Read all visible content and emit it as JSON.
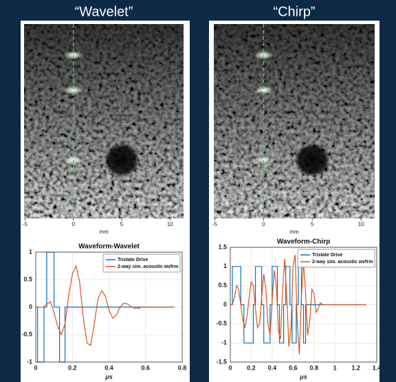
{
  "chart_data": [
    {
      "type": "image",
      "title": "“Wavelet”",
      "xlabel": "mm",
      "xlim": [
        -5.1,
        11.4
      ],
      "xticks": [
        -5,
        0,
        5,
        10
      ]
    },
    {
      "type": "image",
      "title": "“Chirp”",
      "xlabel": "mm",
      "xlim": [
        -5.1,
        11.4
      ],
      "xticks": [
        -5,
        0,
        5,
        10
      ]
    },
    {
      "type": "line",
      "title": "Waveform-Wavelet",
      "xlabel": "μs",
      "xlim": [
        0,
        0.8
      ],
      "ylim": [
        -1,
        1
      ],
      "xticks": [
        0,
        0.2,
        0.4,
        0.6,
        0.8
      ],
      "yticks": [
        -1,
        -0.5,
        0,
        0.5,
        1
      ],
      "grid": true,
      "legend": "top-right",
      "series": [
        {
          "name": "Tristate Drive",
          "color": "#0072bd",
          "x": [
            0,
            0.01,
            0.01,
            0.045,
            0.045,
            0.06,
            0.06,
            0.1,
            0.1,
            0.13,
            0.13,
            0.16,
            0.16,
            0.75
          ],
          "values": [
            0,
            0,
            -1,
            -1,
            0,
            0,
            1,
            1,
            0,
            0,
            -1,
            -1,
            0,
            0
          ]
        },
        {
          "name": "2-way sim. acoustic wvfrm",
          "color": "#d95319",
          "x": [
            0,
            0.02,
            0.04,
            0.06,
            0.08,
            0.1,
            0.12,
            0.14,
            0.16,
            0.18,
            0.2,
            0.22,
            0.24,
            0.26,
            0.28,
            0.3,
            0.32,
            0.34,
            0.36,
            0.38,
            0.4,
            0.42,
            0.44,
            0.46,
            0.48,
            0.5,
            0.52,
            0.54,
            0.56,
            0.58,
            0.6,
            0.62,
            0.64,
            0.66,
            0.68,
            0.7,
            0.72,
            0.74,
            0.76
          ],
          "values": [
            0,
            0,
            0,
            0.05,
            0.1,
            -0.1,
            -0.35,
            -0.5,
            -0.3,
            0.2,
            0.6,
            0.75,
            0.45,
            -0.2,
            -0.65,
            -0.7,
            -0.3,
            0.15,
            0.3,
            0.2,
            -0.05,
            -0.2,
            -0.15,
            0,
            0.07,
            0.06,
            0.01,
            -0.02,
            -0.02,
            0,
            0,
            0,
            0,
            0,
            0,
            0,
            0,
            0,
            0
          ]
        }
      ]
    },
    {
      "type": "line",
      "title": "Waveform-Chirp",
      "xlabel": "μs",
      "xlim": [
        0,
        1.4
      ],
      "ylim": [
        -1.5,
        1.5
      ],
      "xticks": [
        0,
        0.2,
        0.4,
        0.6,
        0.8,
        1,
        1.2,
        1.4
      ],
      "yticks": [
        -1.5,
        -1,
        -0.5,
        0,
        0.5,
        1,
        1.5
      ],
      "grid": true,
      "legend": "top-right",
      "series": [
        {
          "name": "Tristate Drive",
          "color": "#0072bd",
          "x": [
            0,
            0.02,
            0.02,
            0.1,
            0.1,
            0.13,
            0.13,
            0.22,
            0.22,
            0.24,
            0.24,
            0.3,
            0.3,
            0.32,
            0.32,
            0.38,
            0.38,
            0.4,
            0.4,
            0.45,
            0.45,
            0.47,
            0.47,
            0.51,
            0.51,
            0.53,
            0.53,
            0.57,
            0.57,
            0.59,
            0.59,
            0.63,
            0.63,
            0.65,
            0.65,
            0.68,
            0.68,
            0.7,
            0.7,
            0.72,
            0.72,
            1.3
          ],
          "values": [
            0,
            0,
            1,
            1,
            0,
            0,
            -1,
            -1,
            0,
            0,
            1,
            1,
            0,
            0,
            -1,
            -1,
            0,
            0,
            1,
            1,
            0,
            0,
            -1,
            -1,
            0,
            0,
            1,
            1,
            0,
            0,
            -1,
            -1,
            0,
            0,
            1,
            1,
            0,
            0,
            -1,
            -1,
            0,
            0
          ]
        },
        {
          "name": "2-way sim. acoustic wvfrm",
          "color": "#d95319",
          "x": [
            0,
            0.02,
            0.04,
            0.06,
            0.08,
            0.1,
            0.12,
            0.14,
            0.16,
            0.18,
            0.2,
            0.22,
            0.24,
            0.26,
            0.28,
            0.3,
            0.32,
            0.34,
            0.36,
            0.38,
            0.4,
            0.42,
            0.44,
            0.46,
            0.48,
            0.5,
            0.52,
            0.54,
            0.56,
            0.58,
            0.6,
            0.62,
            0.64,
            0.66,
            0.68,
            0.7,
            0.72,
            0.74,
            0.76,
            0.78,
            0.8,
            0.82,
            0.84,
            0.86,
            0.88,
            0.9,
            0.92,
            0.94,
            0.96,
            0.98,
            1,
            1.02,
            1.04,
            1.06,
            1.08,
            1.1,
            1.12,
            1.14,
            1.16,
            1.18,
            1.2,
            1.22,
            1.24,
            1.26,
            1.28,
            1.3
          ],
          "values": [
            0,
            0,
            0.2,
            0.5,
            0.4,
            0,
            -0.4,
            -0.6,
            -0.3,
            0.2,
            0.6,
            0.5,
            -0.1,
            -0.6,
            -0.5,
            0.2,
            0.8,
            0.4,
            -0.5,
            -0.8,
            0.1,
            0.9,
            0.5,
            -0.7,
            -0.9,
            0.4,
            1.2,
            0.2,
            -1.1,
            -0.6,
            1,
            1.3,
            -0.5,
            -1.3,
            0.2,
            1.1,
            0.3,
            -0.8,
            -0.4,
            0.4,
            0.3,
            -0.2,
            -0.1,
            0.05,
            0,
            0,
            0,
            0,
            0,
            0,
            0,
            0,
            0,
            0,
            0,
            0,
            0,
            0,
            0,
            0,
            0,
            0,
            0,
            0,
            0,
            0
          ]
        }
      ]
    }
  ]
}
